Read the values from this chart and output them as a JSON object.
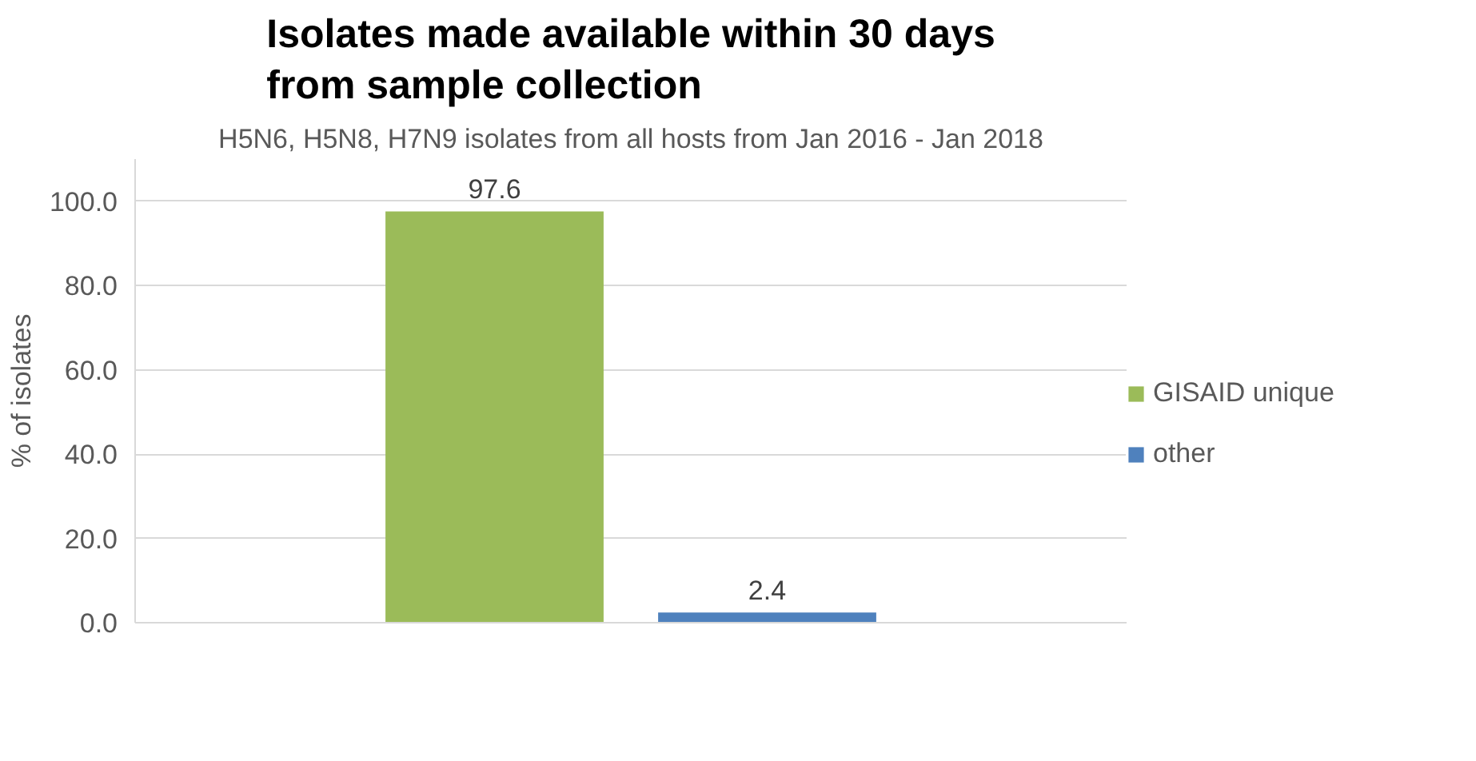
{
  "chart_data": {
    "type": "bar",
    "title": "Isolates made available within 30 days\nfrom sample collection",
    "subtitle": "H5N6, H5N8, H7N9 isolates from all hosts from Jan 2016 - Jan 2018",
    "ylabel": "% of isolates",
    "categories": [
      null
    ],
    "series": [
      {
        "name": "GISAID unique",
        "color": "#9bbb59",
        "values": [
          97.6
        ]
      },
      {
        "name": "other",
        "color": "#4f81bd",
        "values": [
          2.4
        ]
      }
    ],
    "ylim": [
      0,
      110
    ],
    "yticks": [
      {
        "value": 0,
        "label": "0.0"
      },
      {
        "value": 20,
        "label": "20.0"
      },
      {
        "value": 40,
        "label": "40.0"
      },
      {
        "value": 60,
        "label": "60.0"
      },
      {
        "value": 80,
        "label": "80.0"
      },
      {
        "value": 100,
        "label": "100.0"
      }
    ],
    "grid": "y",
    "legend": "right",
    "data_labels": true,
    "tick_labels": "y"
  }
}
